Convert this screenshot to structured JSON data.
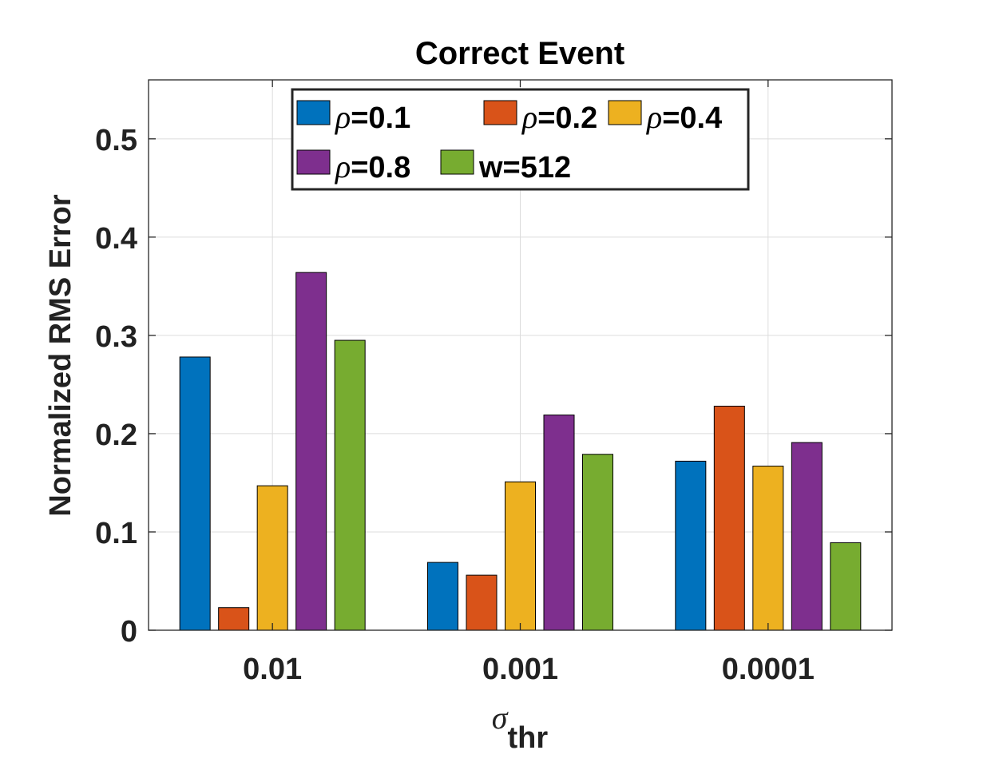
{
  "chart_data": {
    "type": "bar",
    "title": "Correct Event",
    "xlabel": {
      "symbol": "σ",
      "subscript": "thr"
    },
    "ylabel": "Normalized RMS Error",
    "categories": [
      "0.01",
      "0.001",
      "0.0001"
    ],
    "ylim": [
      0,
      0.56
    ],
    "yticks": [
      0,
      0.1,
      0.2,
      0.3,
      0.4,
      0.5
    ],
    "ytick_labels": [
      "0",
      "0.1",
      "0.2",
      "0.3",
      "0.4",
      "0.5"
    ],
    "grid": true,
    "legend_position": "top-center",
    "series": [
      {
        "name": "ρ=0.1",
        "symbol": "ρ",
        "suffix": "=0.1",
        "color": "#0072BD",
        "values": [
          0.278,
          0.069,
          0.172
        ]
      },
      {
        "name": "ρ=0.2",
        "symbol": "ρ",
        "suffix": "=0.2",
        "color": "#D95319",
        "values": [
          0.023,
          0.056,
          0.228
        ]
      },
      {
        "name": "ρ=0.4",
        "symbol": "ρ",
        "suffix": "=0.4",
        "color": "#EDB120",
        "values": [
          0.147,
          0.151,
          0.167
        ]
      },
      {
        "name": "ρ=0.8",
        "symbol": "ρ",
        "suffix": "=0.8",
        "color": "#7E2F8E",
        "values": [
          0.364,
          0.219,
          0.191
        ]
      },
      {
        "name": "w=512",
        "symbol": "",
        "suffix": "w=512",
        "color": "#77AC30",
        "values": [
          0.295,
          0.179,
          0.089
        ]
      }
    ]
  }
}
